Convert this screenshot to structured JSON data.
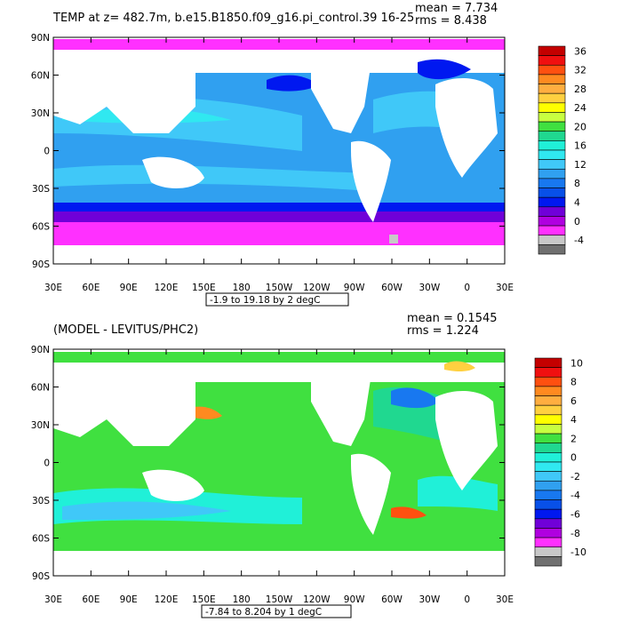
{
  "panels": [
    {
      "id": "top",
      "title": "TEMP at z= 482.7m, b.e15.B1850.f09_g16.pi_control.39 16-25",
      "mean_text": "mean = 7.734",
      "rms_text": "rms = 8.438",
      "range_text": "-1.9 to 19.18 by 2 degC",
      "lat_labels": [
        "90N",
        "60N",
        "30N",
        "0",
        "30S",
        "60S",
        "90S"
      ],
      "lon_labels": [
        "30E",
        "60E",
        "90E",
        "120E",
        "150E",
        "180",
        "150W",
        "120W",
        "90W",
        "60W",
        "30W",
        "0",
        "30E"
      ],
      "colorbar": {
        "labels": [
          "36",
          "32",
          "28",
          "24",
          "20",
          "16",
          "12",
          "8",
          "4",
          "0",
          "-4"
        ],
        "colors": [
          "#c40000",
          "#f01010",
          "#ff5010",
          "#ff8a20",
          "#ffae40",
          "#ffd040",
          "#ffff00",
          "#c8ff40",
          "#40e040",
          "#20d890",
          "#20f0d8",
          "#30e8f0",
          "#40c8f8",
          "#30a0f0",
          "#1878f0",
          "#0850e8",
          "#0018f0",
          "#7000d8",
          "#b000e0",
          "#ff30ff",
          "#c8c8c8",
          "#707070"
        ]
      }
    },
    {
      "id": "bottom",
      "title": "(MODEL - LEVITUS/PHC2)",
      "mean_text": "mean = 0.1545",
      "rms_text": "rms = 1.224",
      "range_text": "-7.84 to 8.204 by 1 degC",
      "lat_labels": [
        "90N",
        "60N",
        "30N",
        "0",
        "30S",
        "60S",
        "90S"
      ],
      "lon_labels": [
        "30E",
        "60E",
        "90E",
        "120E",
        "150E",
        "180",
        "150W",
        "120W",
        "90W",
        "60W",
        "30W",
        "0",
        "30E"
      ],
      "colorbar": {
        "labels": [
          "10",
          "8",
          "6",
          "4",
          "2",
          "0",
          "-2",
          "-4",
          "-6",
          "-8",
          "-10"
        ],
        "colors": [
          "#c40000",
          "#f01010",
          "#ff5010",
          "#ff8a20",
          "#ffae40",
          "#ffd040",
          "#ffff00",
          "#c8ff40",
          "#40e040",
          "#20d890",
          "#20f0d8",
          "#30e8f0",
          "#40c8f8",
          "#30a0f0",
          "#1878f0",
          "#0850e8",
          "#0018f0",
          "#7000d8",
          "#b000e0",
          "#ff30ff",
          "#c8c8c8",
          "#707070"
        ]
      }
    }
  ]
}
